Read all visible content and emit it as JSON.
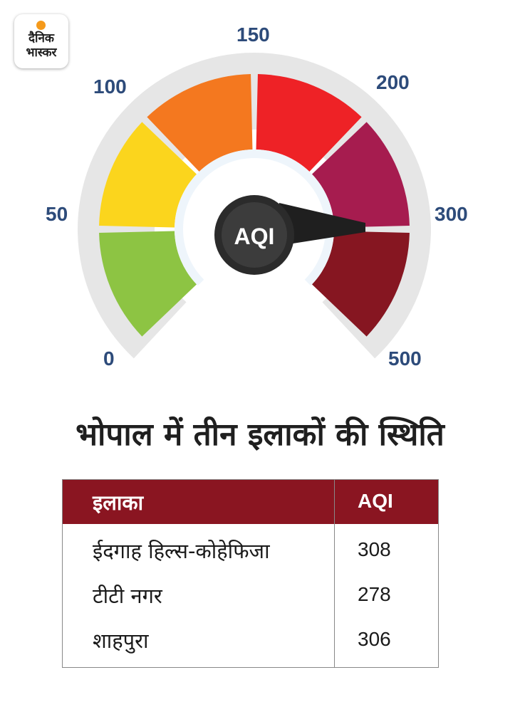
{
  "logo": {
    "line1": "दैनिक",
    "line2": "भास्कर"
  },
  "gauge": {
    "center_label": "AQI",
    "ticks": [
      "0",
      "50",
      "100",
      "150",
      "200",
      "300",
      "500"
    ],
    "segment_colors": [
      "#8dc443",
      "#fbd51d",
      "#f4781f",
      "#ee2226",
      "#a61c4f",
      "#861621"
    ],
    "needle_value": 300
  },
  "title": "भोपाल में तीन इलाकों की स्थिति",
  "table": {
    "headers": [
      "इलाका",
      "AQI"
    ],
    "rows": [
      {
        "area": "ईदगाह हिल्स-कोहेफिजा",
        "aqi": "308"
      },
      {
        "area": "टीटी नगर",
        "aqi": "278"
      },
      {
        "area": "शाहपुरा",
        "aqi": "306"
      }
    ]
  }
}
